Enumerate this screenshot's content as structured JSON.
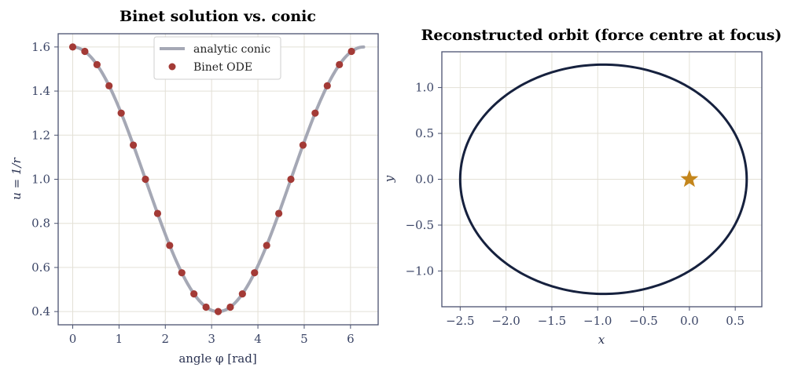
{
  "chart_data": [
    {
      "type": "line",
      "title": "Binet solution vs. conic",
      "xlabel": "angle  φ  [rad]",
      "ylabel": "u = 1/r",
      "xlim": [
        -0.314,
        6.597
      ],
      "ylim": [
        0.34,
        1.66
      ],
      "xticks": [
        0,
        1,
        2,
        3,
        4,
        5,
        6
      ],
      "yticks": [
        0.4,
        0.6,
        0.8,
        1.0,
        1.2,
        1.4,
        1.6
      ],
      "ytick_labels": [
        "0.4",
        "0.6",
        "0.8",
        "1.0",
        "1.2",
        "1.4",
        "1.6"
      ],
      "grid": true,
      "legend_position": "top-center",
      "conic": {
        "p": 1.0,
        "e": 0.6
      },
      "series": [
        {
          "name": "analytic conic",
          "style": "line",
          "color": "#a5a8b5",
          "x": [
            0.0,
            0.262,
            0.524,
            0.785,
            1.047,
            1.309,
            1.571,
            1.833,
            2.094,
            2.356,
            2.618,
            2.88,
            3.142,
            3.403,
            3.665,
            3.927,
            4.189,
            4.451,
            4.712,
            4.974,
            5.236,
            5.498,
            5.76,
            6.021,
            6.283
          ],
          "values": [
            1.6,
            1.58,
            1.52,
            1.424,
            1.3,
            1.155,
            1.0,
            0.845,
            0.7,
            0.576,
            0.48,
            0.42,
            0.4,
            0.42,
            0.48,
            0.576,
            0.7,
            0.845,
            1.0,
            1.155,
            1.3,
            1.424,
            1.52,
            1.58,
            1.6
          ]
        },
        {
          "name": "Binet ODE",
          "style": "markers",
          "color": "#a33a36",
          "x": [
            0.0,
            0.262,
            0.524,
            0.785,
            1.047,
            1.309,
            1.571,
            1.833,
            2.094,
            2.356,
            2.618,
            2.88,
            3.142,
            3.403,
            3.665,
            3.927,
            4.189,
            4.451,
            4.712,
            4.974,
            5.236,
            5.498,
            5.76,
            6.021
          ],
          "values": [
            1.6,
            1.58,
            1.52,
            1.424,
            1.3,
            1.155,
            1.0,
            0.845,
            0.7,
            0.576,
            0.48,
            0.42,
            0.4,
            0.42,
            0.48,
            0.576,
            0.7,
            0.845,
            1.0,
            1.155,
            1.3,
            1.424,
            1.52,
            1.58
          ]
        }
      ]
    },
    {
      "type": "line",
      "title": "Reconstructed orbit (force centre at focus)",
      "xlabel": "x",
      "ylabel": "y",
      "xlim": [
        -2.7,
        0.79
      ],
      "ylim": [
        -1.39,
        1.39
      ],
      "xticks": [
        -2.5,
        -2.0,
        -1.5,
        -1.0,
        -0.5,
        0.0,
        0.5
      ],
      "xtick_labels": [
        "−2.5",
        "−2.0",
        "−1.5",
        "−1.0",
        "−0.5",
        "0.0",
        "0.5"
      ],
      "yticks": [
        -1.0,
        -0.5,
        0.0,
        0.5,
        1.0
      ],
      "ytick_labels": [
        "−1.0",
        "−0.5",
        "0.0",
        "0.5",
        "1.0"
      ],
      "grid": true,
      "orbit": {
        "p": 1.0,
        "e": 0.6,
        "color": "#16213e"
      },
      "focus": {
        "x": 0.0,
        "y": 0.0,
        "marker": "star",
        "color": "#c4861c"
      }
    }
  ]
}
